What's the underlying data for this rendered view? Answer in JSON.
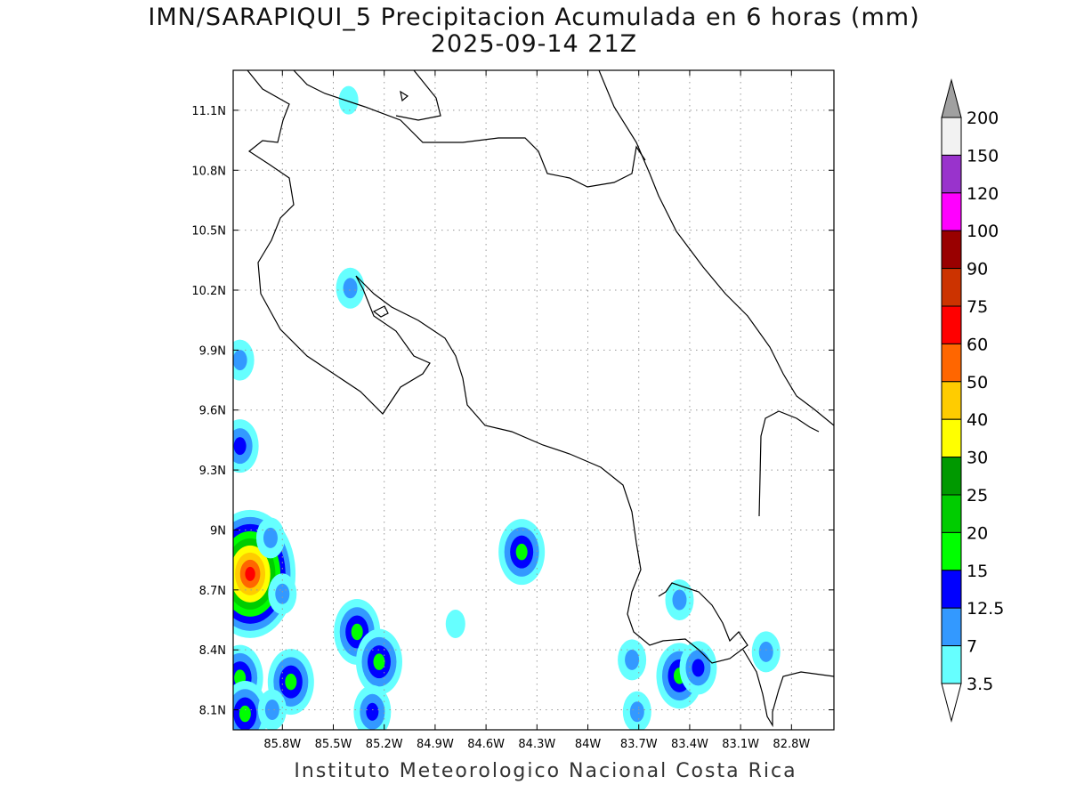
{
  "title": {
    "line1": "IMN/SARAPIQUI_5 Precipitacion Acumulada en 6 horas (mm)",
    "line2": "2025-09-14 21Z"
  },
  "footer": "Instituto Meteorologico Nacional Costa Rica",
  "map": {
    "lon_range": [
      -86.09,
      -82.55
    ],
    "lat_range": [
      8.0,
      11.3
    ],
    "lat_ticks": [
      {
        "value": 11.1,
        "label": "11.1N"
      },
      {
        "value": 10.8,
        "label": "10.8N"
      },
      {
        "value": 10.5,
        "label": "10.5N"
      },
      {
        "value": 10.2,
        "label": "10.2N"
      },
      {
        "value": 9.9,
        "label": "9.9N"
      },
      {
        "value": 9.6,
        "label": "9.6N"
      },
      {
        "value": 9.3,
        "label": "9.3N"
      },
      {
        "value": 9.0,
        "label": "9N"
      },
      {
        "value": 8.7,
        "label": "8.7N"
      },
      {
        "value": 8.4,
        "label": "8.4N"
      },
      {
        "value": 8.1,
        "label": "8.1N"
      }
    ],
    "lon_ticks": [
      {
        "value": -85.8,
        "label": "85.8W"
      },
      {
        "value": -85.5,
        "label": "85.5W"
      },
      {
        "value": -85.2,
        "label": "85.2W"
      },
      {
        "value": -84.9,
        "label": "84.9W"
      },
      {
        "value": -84.6,
        "label": "84.6W"
      },
      {
        "value": -84.3,
        "label": "84.3W"
      },
      {
        "value": -84.0,
        "label": "84W"
      },
      {
        "value": -83.7,
        "label": "83.7W"
      },
      {
        "value": -83.4,
        "label": "83.4W"
      },
      {
        "value": -83.1,
        "label": "83.1W"
      },
      {
        "value": -82.8,
        "label": "82.8W"
      }
    ],
    "grid": "dotted"
  },
  "legend": {
    "levels": [
      {
        "label": "3.5",
        "color": "#66ffff"
      },
      {
        "label": "7",
        "color": "#3399ff"
      },
      {
        "label": "12.5",
        "color": "#0000ff"
      },
      {
        "label": "15",
        "color": "#00ff00"
      },
      {
        "label": "20",
        "color": "#00cc00"
      },
      {
        "label": "25",
        "color": "#009900"
      },
      {
        "label": "30",
        "color": "#ffff00"
      },
      {
        "label": "40",
        "color": "#ffcc00"
      },
      {
        "label": "50",
        "color": "#ff6600"
      },
      {
        "label": "60",
        "color": "#ff0000"
      },
      {
        "label": "75",
        "color": "#cc3300"
      },
      {
        "label": "90",
        "color": "#990000"
      },
      {
        "label": "100",
        "color": "#ff00ff"
      },
      {
        "label": "120",
        "color": "#9933cc"
      },
      {
        "label": "150",
        "color": "#f2f2f2"
      },
      {
        "label": "200",
        "color": ""
      }
    ],
    "max_arrow_color": "#a0a0a0",
    "min_arrow_color": "#ffffff"
  },
  "precip_cells": [
    {
      "lon": -85.99,
      "lat": 8.78,
      "levels": [
        "3.5",
        "7",
        "12.5",
        "15",
        "20",
        "30",
        "40",
        "50",
        "60"
      ]
    },
    {
      "lon": -85.87,
      "lat": 8.96,
      "levels": [
        "3.5",
        "7"
      ]
    },
    {
      "lon": -85.8,
      "lat": 8.68,
      "levels": [
        "3.5",
        "7"
      ]
    },
    {
      "lon": -86.05,
      "lat": 9.42,
      "levels": [
        "3.5",
        "7",
        "12.5"
      ]
    },
    {
      "lon": -86.05,
      "lat": 9.85,
      "levels": [
        "3.5",
        "7"
      ]
    },
    {
      "lon": -86.05,
      "lat": 8.26,
      "levels": [
        "3.5",
        "7",
        "12.5",
        "15"
      ]
    },
    {
      "lon": -86.02,
      "lat": 8.08,
      "levels": [
        "3.5",
        "7",
        "12.5",
        "15"
      ]
    },
    {
      "lon": -85.75,
      "lat": 8.24,
      "levels": [
        "3.5",
        "7",
        "12.5",
        "15"
      ]
    },
    {
      "lon": -85.86,
      "lat": 8.1,
      "levels": [
        "3.5",
        "7"
      ]
    },
    {
      "lon": -85.36,
      "lat": 8.49,
      "levels": [
        "3.5",
        "7",
        "12.5",
        "15"
      ]
    },
    {
      "lon": -85.23,
      "lat": 8.34,
      "levels": [
        "3.5",
        "7",
        "12.5",
        "15"
      ]
    },
    {
      "lon": -85.27,
      "lat": 8.09,
      "levels": [
        "3.5",
        "7",
        "12.5"
      ]
    },
    {
      "lon": -84.39,
      "lat": 8.89,
      "levels": [
        "3.5",
        "7",
        "12.5",
        "15"
      ]
    },
    {
      "lon": -84.78,
      "lat": 8.53,
      "levels": [
        "3.5"
      ]
    },
    {
      "lon": -85.4,
      "lat": 10.21,
      "levels": [
        "3.5",
        "7"
      ]
    },
    {
      "lon": -85.41,
      "lat": 11.15,
      "levels": [
        "3.5"
      ]
    },
    {
      "lon": -83.74,
      "lat": 8.35,
      "levels": [
        "3.5",
        "7"
      ]
    },
    {
      "lon": -83.46,
      "lat": 8.27,
      "levels": [
        "3.5",
        "7",
        "12.5",
        "15"
      ]
    },
    {
      "lon": -83.35,
      "lat": 8.31,
      "levels": [
        "3.5",
        "7",
        "12.5"
      ]
    },
    {
      "lon": -82.95,
      "lat": 8.39,
      "levels": [
        "3.5",
        "7"
      ]
    },
    {
      "lon": -83.71,
      "lat": 8.09,
      "levels": [
        "3.5",
        "7"
      ]
    },
    {
      "lon": -83.46,
      "lat": 8.65,
      "levels": [
        "3.5",
        "7"
      ]
    }
  ]
}
